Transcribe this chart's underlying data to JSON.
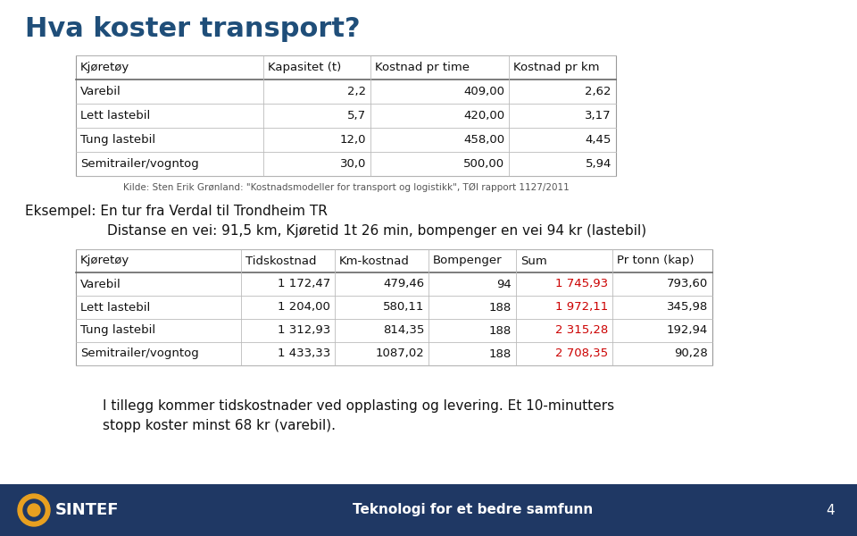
{
  "title": "Hva koster transport?",
  "title_color": "#1F4E79",
  "bg_color": "#FFFFFF",
  "footer_bg": "#1F3864",
  "footer_text": "Teknologi for et bedre samfunn",
  "footer_page": "4",
  "footer_text_color": "#FFFFFF",
  "table1_headers": [
    "Kjøretøy",
    "Kapasitet (t)",
    "Kostnad pr time",
    "Kostnad pr km"
  ],
  "table1_rows": [
    [
      "Varebil",
      "2,2",
      "409,00",
      "2,62"
    ],
    [
      "Lett lastebil",
      "5,7",
      "420,00",
      "3,17"
    ],
    [
      "Tung lastebil",
      "12,0",
      "458,00",
      "4,45"
    ],
    [
      "Semitrailer/vogntog",
      "30,0",
      "500,00",
      "5,94"
    ]
  ],
  "table1_source": "Kilde: Sten Erik Grønland: \"Kostnadsmodeller for transport og logistikk\", TØI rapport 1127/2011",
  "example_line1": "Eksempel: En tur fra Verdal til Trondheim TR",
  "example_line2": "Distanse en vei: 91,5 km, Kjøretid 1t 26 min, bompenger en vei 94 kr (lastebil)",
  "table2_headers": [
    "Kjøretøy",
    "Tidskostnad",
    "Km-kostnad",
    "Bompenger",
    "Sum",
    "Pr tonn (kap)"
  ],
  "table2_rows": [
    [
      "Varebil",
      "1 172,47",
      "479,46",
      "94",
      "1 745,93",
      "793,60"
    ],
    [
      "Lett lastebil",
      "1 204,00",
      "580,11",
      "188",
      "1 972,11",
      "345,98"
    ],
    [
      "Tung lastebil",
      "1 312,93",
      "814,35",
      "188",
      "2 315,28",
      "192,94"
    ],
    [
      "Semitrailer/vogntog",
      "1 433,33",
      "1087,02",
      "188",
      "2 708,35",
      "90,28"
    ]
  ],
  "table2_sum_col": 4,
  "sum_color": "#CC0000",
  "footer_note_line1": "I tillegg kommer tidskostnader ved opplasting og levering. Et 10-minutters",
  "footer_note_line2": "stopp koster minst 68 kr (varebil).",
  "table_line_color": "#AAAAAA",
  "table_header_line_color": "#555555",
  "text_color": "#333333"
}
